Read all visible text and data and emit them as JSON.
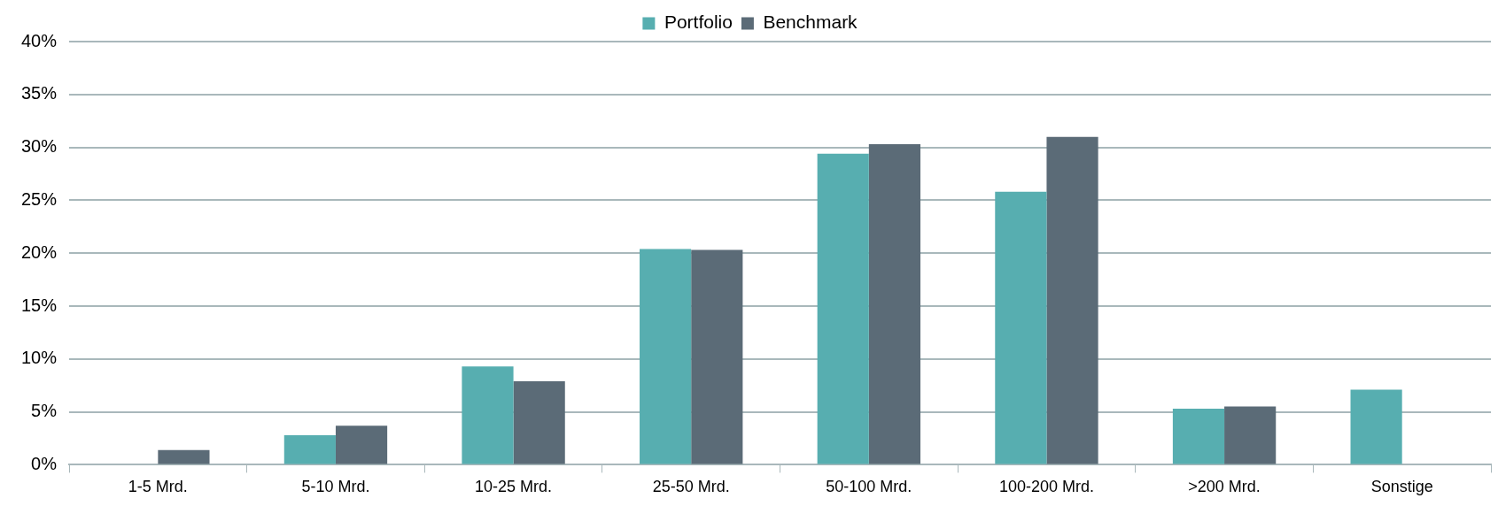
{
  "chart_data": {
    "type": "bar",
    "categories": [
      "1-5 Mrd.",
      "5-10 Mrd.",
      "10-25 Mrd.",
      "25-50 Mrd.",
      "50-100 Mrd.",
      "100-200 Mrd.",
      ">200 Mrd.",
      "Sonstige"
    ],
    "series": [
      {
        "name": "Portfolio",
        "color": "#57aeb0",
        "values": [
          null,
          2.8,
          9.3,
          20.4,
          29.4,
          25.8,
          5.3,
          7.1
        ]
      },
      {
        "name": "Benchmark",
        "color": "#5b6b77",
        "values": [
          1.4,
          3.7,
          7.9,
          20.3,
          30.3,
          31.0,
          5.5,
          null
        ]
      }
    ],
    "ylim": [
      0,
      40
    ],
    "yticks": [
      {
        "value": 0,
        "label": "0%"
      },
      {
        "value": 5,
        "label": "5%"
      },
      {
        "value": 10,
        "label": "10%"
      },
      {
        "value": 15,
        "label": "15%"
      },
      {
        "value": 20,
        "label": "20%"
      },
      {
        "value": 25,
        "label": "25%"
      },
      {
        "value": 30,
        "label": "30%"
      },
      {
        "value": 35,
        "label": "35%"
      },
      {
        "value": 40,
        "label": "40%"
      }
    ],
    "grid": "y",
    "legend": "top"
  }
}
